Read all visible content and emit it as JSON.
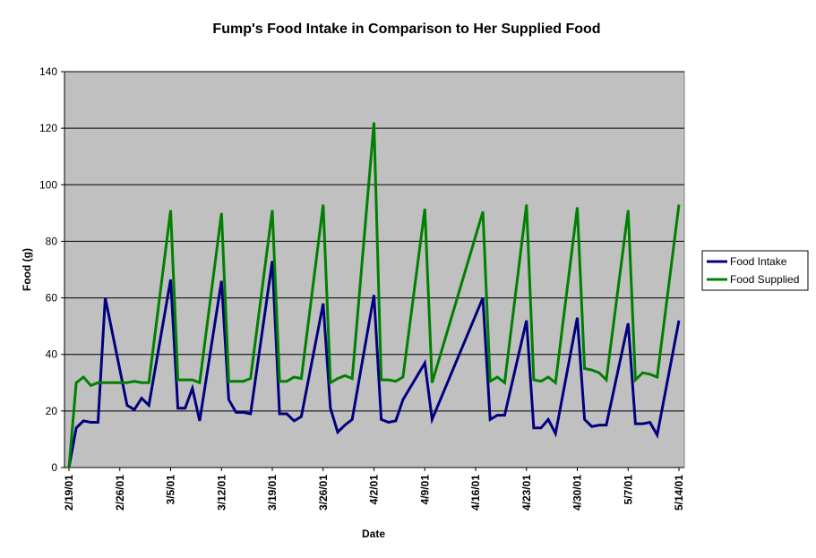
{
  "chart_data": {
    "type": "line",
    "title": "Fump's Food Intake in Comparison to Her Supplied Food",
    "xlabel": "Date",
    "ylabel": "Food (g)",
    "ylim": [
      0,
      140
    ],
    "yticks": [
      0,
      20,
      40,
      60,
      80,
      100,
      120,
      140
    ],
    "xlim": [
      "2001-02-19",
      "2001-05-14"
    ],
    "xtick_labels": [
      "2/19/01",
      "2/26/01",
      "3/5/01",
      "3/12/01",
      "3/19/01",
      "3/26/01",
      "4/2/01",
      "4/9/01",
      "4/16/01",
      "4/23/01",
      "4/30/01",
      "5/7/01",
      "5/14/01"
    ],
    "x": [
      "2001-02-19",
      "2001-02-20",
      "2001-02-21",
      "2001-02-22",
      "2001-02-23",
      "2001-02-24",
      "2001-02-27",
      "2001-02-28",
      "2001-03-01",
      "2001-03-02",
      "2001-03-05",
      "2001-03-06",
      "2001-03-07",
      "2001-03-08",
      "2001-03-09",
      "2001-03-12",
      "2001-03-13",
      "2001-03-14",
      "2001-03-15",
      "2001-03-16",
      "2001-03-19",
      "2001-03-20",
      "2001-03-21",
      "2001-03-22",
      "2001-03-23",
      "2001-03-26",
      "2001-03-27",
      "2001-03-28",
      "2001-03-29",
      "2001-03-30",
      "2001-04-02",
      "2001-04-03",
      "2001-04-04",
      "2001-04-05",
      "2001-04-06",
      "2001-04-09",
      "2001-04-10",
      "2001-04-17",
      "2001-04-18",
      "2001-04-19",
      "2001-04-20",
      "2001-04-23",
      "2001-04-24",
      "2001-04-25",
      "2001-04-26",
      "2001-04-27",
      "2001-04-30",
      "2001-05-01",
      "2001-05-02",
      "2001-05-03",
      "2001-05-04",
      "2001-05-07",
      "2001-05-08",
      "2001-05-09",
      "2001-05-10",
      "2001-05-11",
      "2001-05-14"
    ],
    "series": [
      {
        "name": "Food Intake",
        "color": "#000080",
        "values": [
          0,
          14,
          16.5,
          16,
          16,
          60,
          22,
          20.5,
          24.5,
          22,
          66.5,
          21,
          21,
          28,
          16.5,
          66,
          24,
          19.5,
          19.5,
          19,
          73,
          19,
          19,
          16.5,
          18,
          58,
          21,
          12.5,
          15,
          17,
          61,
          17,
          16,
          16.5,
          24,
          37,
          17,
          60,
          17,
          18.5,
          18.5,
          52,
          14,
          14,
          17,
          12,
          53,
          17,
          14.5,
          15,
          15,
          51,
          15.5,
          15.5,
          16,
          11.5,
          52
        ]
      },
      {
        "name": "Food Supplied",
        "color": "#008000",
        "values": [
          0,
          30,
          32,
          29,
          30,
          30,
          30,
          30.5,
          30,
          30,
          91,
          31,
          31,
          31,
          30,
          90,
          30.5,
          30.5,
          30.5,
          31.5,
          91,
          30.5,
          30.5,
          32,
          31.5,
          93,
          30,
          31.5,
          32.5,
          31.5,
          122,
          31,
          31,
          30.5,
          32,
          91.5,
          30,
          90.5,
          30.5,
          32,
          30,
          93,
          31,
          30.5,
          32,
          30,
          92,
          35,
          34.5,
          33.5,
          31,
          91,
          31,
          33.5,
          33,
          32,
          93
        ]
      }
    ],
    "grid": true,
    "legend": "right",
    "plot_background": "#c0c0c0"
  }
}
